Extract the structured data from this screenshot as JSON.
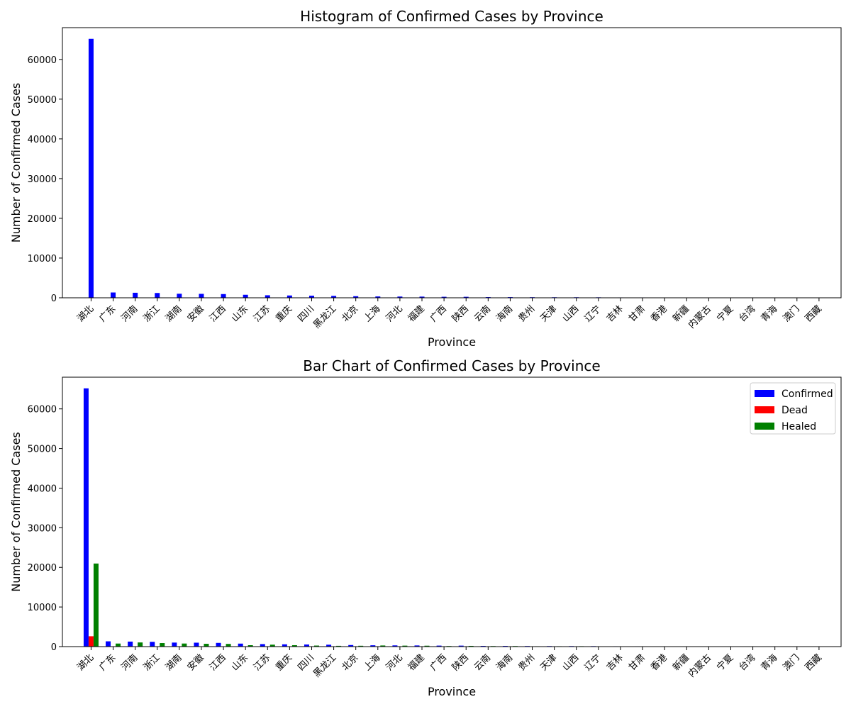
{
  "chart_data": [
    {
      "type": "bar",
      "title": "Histogram of Confirmed Cases by Province",
      "xlabel": "Province",
      "ylabel": "Number of Confirmed Cases",
      "ylim": [
        0,
        68000
      ],
      "yticks": [
        0,
        10000,
        20000,
        30000,
        40000,
        50000,
        60000
      ],
      "categories": [
        "湖北",
        "广东",
        "河南",
        "浙江",
        "湖南",
        "安徽",
        "江西",
        "山东",
        "江苏",
        "重庆",
        "四川",
        "黑龙江",
        "北京",
        "上海",
        "河北",
        "福建",
        "广西",
        "陕西",
        "云南",
        "海南",
        "贵州",
        "天津",
        "山西",
        "辽宁",
        "吉林",
        "甘肃",
        "香港",
        "新疆",
        "内蒙古",
        "宁夏",
        "台湾",
        "青海",
        "澳门",
        "西藏"
      ],
      "series": [
        {
          "values": [
            65187,
            1333,
            1265,
            1205,
            1016,
            989,
            934,
            755,
            631,
            576,
            529,
            480,
            399,
            335,
            310,
            294,
            251,
            245,
            174,
            168,
            146,
            135,
            133,
            121,
            93,
            91,
            85,
            76,
            75,
            71,
            32,
            18,
            10,
            1
          ],
          "color": "#0000ff"
        }
      ]
    },
    {
      "type": "bar",
      "title": "Bar Chart of Confirmed Cases by Province",
      "xlabel": "Province",
      "ylabel": "Number of Confirmed Cases",
      "ylim": [
        0,
        68000
      ],
      "yticks": [
        0,
        10000,
        20000,
        30000,
        40000,
        50000,
        60000
      ],
      "legend": "top-right",
      "categories": [
        "湖北",
        "广东",
        "河南",
        "浙江",
        "湖南",
        "安徽",
        "江西",
        "山东",
        "江苏",
        "重庆",
        "四川",
        "黑龙江",
        "北京",
        "上海",
        "河北",
        "福建",
        "广西",
        "陕西",
        "云南",
        "海南",
        "贵州",
        "天津",
        "山西",
        "辽宁",
        "吉林",
        "甘肃",
        "香港",
        "新疆",
        "内蒙古",
        "宁夏",
        "台湾",
        "青海",
        "澳门",
        "西藏"
      ],
      "series": [
        {
          "name": "Confirmed",
          "color": "#0000ff",
          "values": [
            65187,
            1333,
            1265,
            1205,
            1016,
            989,
            934,
            755,
            631,
            576,
            529,
            480,
            399,
            335,
            310,
            294,
            251,
            245,
            174,
            168,
            146,
            135,
            133,
            121,
            93,
            91,
            85,
            76,
            75,
            71,
            32,
            18,
            10,
            1
          ]
        },
        {
          "name": "Dead",
          "color": "#ff0000",
          "values": [
            2615,
            5,
            19,
            1,
            4,
            6,
            1,
            6,
            0,
            6,
            3,
            12,
            4,
            3,
            6,
            1,
            2,
            1,
            2,
            4,
            2,
            3,
            0,
            1,
            1,
            2,
            2,
            3,
            0,
            0,
            1,
            0,
            0,
            0
          ]
        },
        {
          "name": "Healed",
          "color": "#008000",
          "values": [
            20969,
            770,
            1051,
            890,
            774,
            713,
            681,
            358,
            488,
            359,
            262,
            197,
            212,
            284,
            245,
            228,
            145,
            183,
            136,
            140,
            96,
            100,
            109,
            80,
            57,
            76,
            46,
            30,
            35,
            62,
            12,
            18,
            7,
            1
          ]
        }
      ]
    }
  ]
}
